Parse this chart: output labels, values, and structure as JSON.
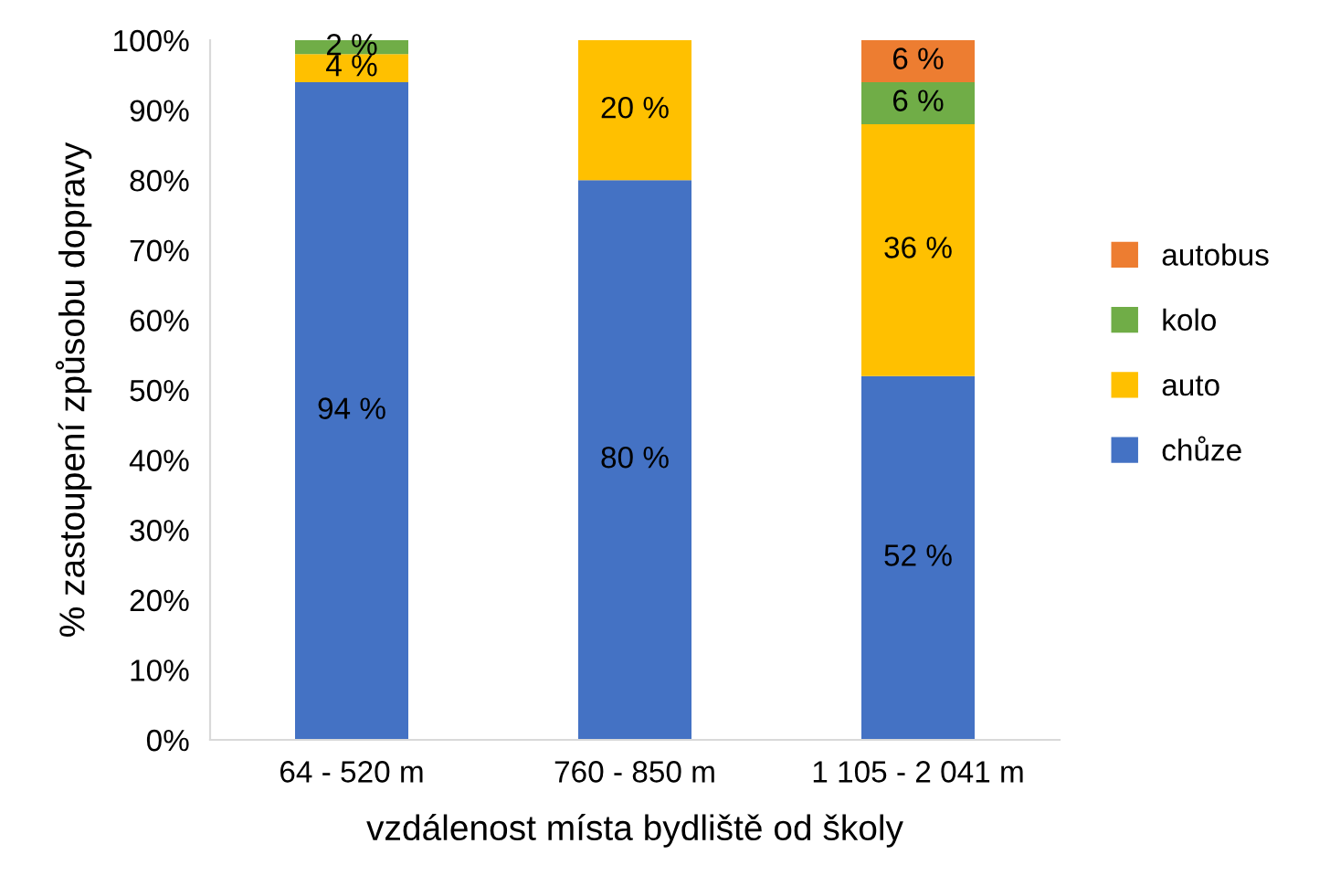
{
  "chart_data": {
    "type": "bar",
    "stacked": true,
    "xlabel": "vzdálenost místa bydliště od školy",
    "ylabel": "% zastoupení způsobu dopravy",
    "categories": [
      "64 - 520 m",
      "760 - 850 m",
      "1 105 - 2 041 m"
    ],
    "series": [
      {
        "name": "chůze",
        "color": "#4472c4",
        "values": [
          94,
          80,
          52
        ],
        "value_labels": [
          "94 %",
          "80 %",
          "52 %"
        ]
      },
      {
        "name": "auto",
        "color": "#ffc000",
        "values": [
          4,
          20,
          36
        ],
        "value_labels": [
          "4 %",
          "20 %",
          "36 %"
        ]
      },
      {
        "name": "kolo",
        "color": "#70ad47",
        "values": [
          2,
          null,
          6
        ],
        "value_labels": [
          "2 %",
          null,
          "6 %"
        ]
      },
      {
        "name": "autobus",
        "color": "#ed7d31",
        "values": [
          null,
          null,
          6
        ],
        "value_labels": [
          null,
          null,
          "6 %"
        ]
      }
    ],
    "ylim": [
      0,
      100
    ],
    "yticks": [
      {
        "value": 0,
        "label": "0%"
      },
      {
        "value": 10,
        "label": "10%"
      },
      {
        "value": 20,
        "label": "20%"
      },
      {
        "value": 30,
        "label": "30%"
      },
      {
        "value": 40,
        "label": "40%"
      },
      {
        "value": 50,
        "label": "50%"
      },
      {
        "value": 60,
        "label": "60%"
      },
      {
        "value": 70,
        "label": "70%"
      },
      {
        "value": 80,
        "label": "80%"
      },
      {
        "value": 90,
        "label": "90%"
      },
      {
        "value": 100,
        "label": "100%"
      }
    ],
    "grid": false,
    "legend": "right"
  }
}
